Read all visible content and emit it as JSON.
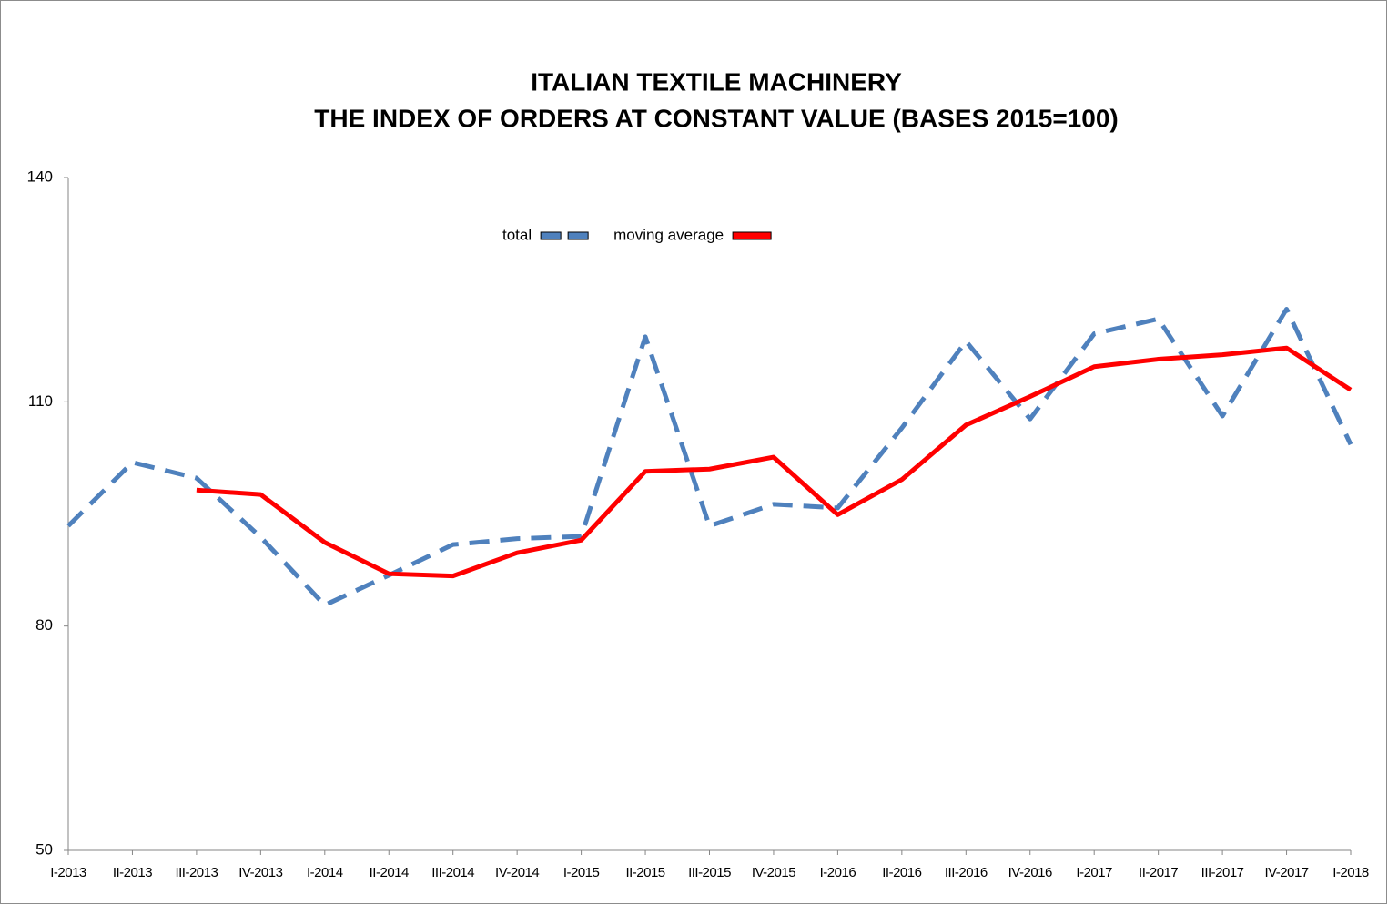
{
  "chart_data": {
    "type": "line",
    "title": "ITALIAN TEXTILE MACHINERY",
    "subtitle": "THE INDEX OF ORDERS AT CONSTANT VALUE (BASES 2015=100)",
    "categories": [
      "I-2013",
      "II-2013",
      "III-2013",
      "IV-2013",
      "I-2014",
      "II-2014",
      "III-2014",
      "IV-2014",
      "I-2015",
      "II-2015",
      "III-2015",
      "IV-2015",
      "I-2016",
      "II-2016",
      "III-2016",
      "IV-2016",
      "I-2017",
      "II-2017",
      "III-2017",
      "IV-2017",
      "I-2018"
    ],
    "series": [
      {
        "name": "total",
        "color": "#4f81bd",
        "dash": true,
        "values": [
          93.4,
          101.9,
          99.8,
          91.9,
          82.8,
          86.8,
          90.9,
          91.7,
          92.0,
          118.7,
          93.4,
          96.3,
          95.8,
          106.5,
          118.1,
          107.7,
          119.1,
          121.1,
          108.1,
          122.4,
          104.3
        ]
      },
      {
        "name": "moving average",
        "color": "#ff0000",
        "dash": false,
        "values": [
          null,
          null,
          98.2,
          97.6,
          91.2,
          87.0,
          86.7,
          89.8,
          91.5,
          100.7,
          101.0,
          102.6,
          94.9,
          99.6,
          106.9,
          110.7,
          114.7,
          115.7,
          116.3,
          117.2,
          111.6
        ]
      }
    ],
    "ylim": [
      50,
      140
    ],
    "yticks": [
      50,
      80,
      110,
      140
    ],
    "grid": false
  }
}
